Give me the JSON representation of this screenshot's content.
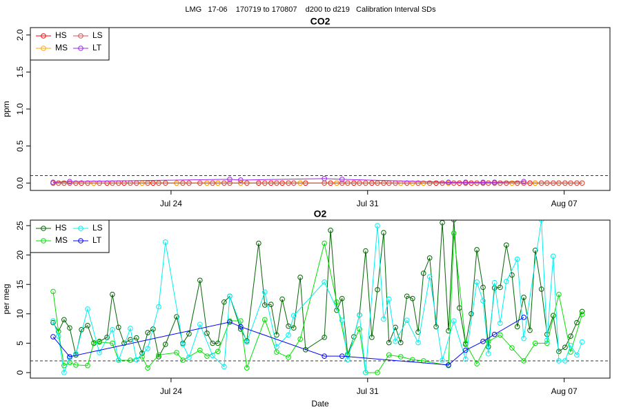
{
  "title": "LMG   17-06    170719 to 170807    d200 to d219   Calibration Interval SDs",
  "chart_data": [
    {
      "type": "line",
      "title": "CO2",
      "ylabel": "ppm",
      "legend": "topleft",
      "grid": false,
      "hline": 0.1,
      "xlim": [
        199.99,
        220.63
      ],
      "ylim": [
        -0.1,
        2.1
      ],
      "xticks": [
        {
          "value": 205,
          "label": "Jul 24"
        },
        {
          "value": 212,
          "label": "Jul 31"
        },
        {
          "value": 219,
          "label": "Aug 07"
        }
      ],
      "yticks": [
        {
          "value": 0,
          "label": "0.0"
        },
        0.5,
        {
          "value": 1,
          "label": "1.0"
        },
        1.5,
        {
          "value": 2,
          "label": "2.0"
        }
      ],
      "series": [
        {
          "name": "HS",
          "color": "#ff0000",
          "x": [
            200.8,
            200.99,
            201.19,
            201.39,
            201.61,
            201.81,
            202.03,
            202.25,
            202.45,
            202.72,
            202.91,
            203.13,
            203.33,
            203.55,
            203.77,
            203.97,
            204.17,
            204.36,
            204.56,
            204.8,
            205.2,
            205.42,
            205.64,
            206.03,
            206.28,
            206.48,
            206.67,
            206.89,
            207.09,
            207.48,
            207.7,
            208.12,
            208.34,
            208.56,
            208.76,
            208.96,
            209.18,
            209.37,
            209.6,
            209.79,
            210.46,
            210.68,
            210.9,
            211.09,
            211.29,
            211.51,
            211.71,
            211.93,
            212.15,
            212.35,
            212.57,
            212.76,
            212.99,
            213.18,
            213.4,
            213.6,
            213.8,
            213.99,
            214.21,
            214.44,
            214.66,
            214.88,
            215.07,
            215.27,
            215.49,
            215.69,
            215.89,
            216.11,
            216.3,
            216.52,
            216.72,
            216.94,
            217.14,
            217.33,
            217.56,
            217.78,
            217.97,
            218.19,
            218.39,
            218.61,
            218.81,
            219.03,
            219.23,
            219.45,
            219.64
          ],
          "values": [
            0,
            0,
            0,
            0,
            0,
            0,
            0,
            0,
            0,
            0,
            0,
            0,
            0,
            0,
            0,
            0,
            0,
            0,
            0,
            0,
            0,
            0,
            0,
            0,
            0,
            0,
            0,
            0,
            0,
            0,
            0,
            0,
            0,
            0,
            0,
            0,
            0,
            0,
            0,
            0,
            0,
            0,
            0,
            0,
            0,
            0,
            0,
            0,
            0,
            0,
            0,
            0,
            0,
            0,
            0,
            0,
            0,
            0,
            0,
            0,
            0,
            0,
            0,
            0,
            0,
            0,
            0,
            0,
            0,
            0,
            0,
            0,
            0,
            0,
            0,
            0,
            0,
            0,
            0,
            0,
            0,
            0,
            0,
            0,
            0
          ]
        },
        {
          "name": "MS",
          "color": "#ffa500",
          "x": [
            200.8,
            200.99,
            201.19,
            201.39,
            201.61,
            202.03,
            202.25,
            202.45,
            202.91,
            203.13,
            203.55,
            203.97,
            204.17,
            204.56,
            205.2,
            205.42,
            206.03,
            206.28,
            206.67,
            207.09,
            207.48,
            207.7,
            208.34,
            208.76,
            209.18,
            209.6,
            210.46,
            210.9,
            211.29,
            211.71,
            211.93,
            212.35,
            212.76,
            213.18,
            213.6,
            213.99,
            214.88,
            215.07,
            215.49,
            215.89,
            216.3,
            216.72,
            217.14,
            217.56,
            217.97,
            218.39,
            218.81,
            219.23,
            219.64
          ],
          "values": [
            0,
            0,
            0,
            0,
            0,
            0,
            0,
            0,
            0,
            0,
            0,
            0,
            0,
            0,
            0,
            0,
            0,
            0,
            0,
            0,
            0,
            0,
            0,
            0,
            0,
            0,
            0,
            0,
            0,
            0,
            0,
            0,
            0,
            0,
            0,
            0,
            0,
            0,
            0,
            0,
            0,
            0,
            0,
            0,
            0,
            0,
            0,
            0,
            0
          ]
        },
        {
          "name": "LS",
          "color": "#d05050",
          "x": [
            200.8,
            200.99,
            201.19,
            201.39,
            201.61,
            202.03,
            202.45,
            202.91,
            203.13,
            203.55,
            203.77,
            204.17,
            204.56,
            204.8,
            205.42,
            205.64,
            206.03,
            206.48,
            206.89,
            207.09,
            207.7,
            208.34,
            208.76,
            209.18,
            209.37,
            210.46,
            211.09,
            211.29,
            211.71,
            211.93,
            212.35,
            212.57,
            212.76,
            212.99,
            213.4,
            213.8,
            214.21,
            214.66,
            215.07,
            215.49,
            215.89,
            216.11,
            216.3,
            216.52,
            216.72,
            216.94,
            217.33,
            217.56,
            218.19,
            218.39,
            218.61,
            218.81,
            219.03,
            219.23,
            219.45,
            219.64
          ],
          "values": [
            0,
            0,
            0,
            0,
            0,
            0,
            0,
            0,
            0,
            0,
            0,
            0,
            0,
            0,
            0,
            0,
            0,
            0,
            0,
            0,
            0,
            0,
            0,
            0,
            0,
            0,
            0,
            0,
            0,
            0,
            0,
            0,
            0,
            0,
            0,
            0,
            0,
            0,
            0,
            0,
            0,
            0,
            0,
            0,
            0,
            0,
            0,
            0,
            0,
            0,
            0,
            0,
            0,
            0,
            0,
            0
          ]
        },
        {
          "name": "LT",
          "color": "#a020f0",
          "x": [
            200.8,
            201.39,
            207.09,
            207.48,
            210.46,
            211.09,
            214.88,
            215.49,
            216.11,
            216.52,
            217.56
          ],
          "values": [
            0.01,
            0.02,
            0.05,
            0.04,
            0.06,
            0.05,
            0.01,
            0.01,
            0.01,
            0.01,
            0.02
          ]
        }
      ]
    },
    {
      "type": "line",
      "title": "O2",
      "ylabel": "per meg",
      "xlabel": "Date",
      "legend": "topleft",
      "grid": false,
      "hline": 2,
      "xlim": [
        199.99,
        220.63
      ],
      "ylim": [
        -0.94,
        25.94
      ],
      "xticks": [
        {
          "value": 205,
          "label": "Jul 24"
        },
        {
          "value": 212,
          "label": "Jul 31"
        },
        {
          "value": 219,
          "label": "Aug 07"
        }
      ],
      "yticks": [
        0,
        5,
        10,
        15,
        20,
        25
      ],
      "series": [
        {
          "name": "HS",
          "color": "#006400",
          "x": [
            200.8,
            200.99,
            201.19,
            201.39,
            201.61,
            201.81,
            202.03,
            202.25,
            202.45,
            202.72,
            202.91,
            203.13,
            203.33,
            203.55,
            203.77,
            203.97,
            204.17,
            204.36,
            204.56,
            204.8,
            205.2,
            205.42,
            205.64,
            206.03,
            206.28,
            206.48,
            206.67,
            206.89,
            207.09,
            207.48,
            207.7,
            208.12,
            208.34,
            208.56,
            208.76,
            208.96,
            209.18,
            209.37,
            209.6,
            209.79,
            210.46,
            210.68,
            210.9,
            211.09,
            211.29,
            211.51,
            211.71,
            211.93,
            212.15,
            212.35,
            212.57,
            212.76,
            212.99,
            213.18,
            213.4,
            213.6,
            213.8,
            213.99,
            214.21,
            214.44,
            214.66,
            214.88,
            215.07,
            215.27,
            215.49,
            215.69,
            215.89,
            216.11,
            216.3,
            216.52,
            216.72,
            216.94,
            217.14,
            217.33,
            217.56,
            217.78,
            217.97,
            218.19,
            218.39,
            218.61,
            218.81,
            219.03,
            219.23,
            219.45,
            219.64
          ],
          "values": [
            8.5,
            7,
            9,
            7.6,
            3,
            7.3,
            8,
            5,
            5.3,
            6,
            13.3,
            7.7,
            5,
            5.6,
            5.9,
            3.3,
            6.8,
            7.4,
            2.7,
            4.8,
            9.5,
            5,
            6.6,
            15.7,
            6.7,
            5,
            5,
            12,
            13,
            7.4,
            5.4,
            22,
            11.5,
            11.6,
            6.4,
            12.5,
            7.9,
            7.6,
            16.2,
            3.9,
            6,
            24.2,
            10.6,
            12.6,
            3.1,
            6.1,
            9.8,
            20.7,
            6,
            14.1,
            23.8,
            5.1,
            7.7,
            5.1,
            13,
            12.6,
            6.9,
            16.9,
            19.5,
            7.8,
            25.5,
            7.1,
            26,
            11,
            4.8,
            10,
            20.9,
            14.5,
            4.4,
            14.4,
            14.5,
            21.7,
            16.6,
            7.8,
            12.8,
            7.2,
            20.8,
            14.2,
            6.5,
            9.7,
            3.6,
            4.3,
            6.2,
            8.5,
            10.4
          ]
        },
        {
          "name": "MS",
          "color": "#00e000",
          "x": [
            200.8,
            200.99,
            201.19,
            201.39,
            201.61,
            202.03,
            202.25,
            202.45,
            202.91,
            203.13,
            203.55,
            203.97,
            204.17,
            204.56,
            205.2,
            205.42,
            206.03,
            206.28,
            206.67,
            207.09,
            207.48,
            207.7,
            208.34,
            208.76,
            209.18,
            209.6,
            210.46,
            210.9,
            211.29,
            211.71,
            211.93,
            212.35,
            212.76,
            213.18,
            213.6,
            213.99,
            214.88,
            215.07,
            215.49,
            215.89,
            216.3,
            216.72,
            217.14,
            217.56,
            217.97,
            218.39,
            218.81,
            219.23,
            219.64
          ],
          "values": [
            13.8,
            7,
            1.2,
            1.7,
            1.3,
            1.2,
            5.1,
            5.2,
            5,
            2.1,
            2.1,
            2.7,
            0.8,
            3,
            3.4,
            2.1,
            3.8,
            2.8,
            3.6,
            8.8,
            8.8,
            0.8,
            9,
            3.5,
            2.6,
            5.7,
            22,
            12,
            3,
            7.4,
            0,
            0,
            3,
            2.7,
            2.2,
            2,
            1.2,
            23.7,
            5,
            1.5,
            5.3,
            6.4,
            4.2,
            2,
            5,
            5,
            13.3,
            3.5,
            9.9
          ]
        },
        {
          "name": "LS",
          "color": "#00f0f0",
          "x": [
            200.8,
            200.99,
            201.19,
            201.39,
            201.61,
            202.03,
            202.45,
            202.91,
            203.13,
            203.55,
            203.77,
            204.17,
            204.56,
            204.8,
            205.42,
            205.64,
            206.03,
            206.48,
            206.89,
            207.09,
            207.7,
            208.34,
            208.76,
            209.18,
            209.37,
            210.46,
            211.09,
            211.29,
            211.71,
            211.93,
            212.35,
            212.57,
            212.76,
            212.99,
            213.4,
            213.8,
            214.21,
            214.66,
            215.07,
            215.49,
            215.89,
            216.11,
            216.3,
            216.52,
            216.72,
            216.94,
            217.33,
            217.56,
            218.19,
            218.39,
            218.61,
            218.81,
            219.03,
            219.23,
            219.45,
            219.64
          ],
          "values": [
            8.8,
            6.2,
            0,
            2.5,
            3.2,
            10.8,
            3.4,
            7.3,
            2.1,
            7.5,
            2.2,
            4.1,
            11.2,
            22.2,
            4.8,
            2.6,
            8.2,
            2.9,
            1,
            13,
            5.2,
            13.7,
            4.4,
            6.4,
            9.7,
            15.4,
            8.9,
            2.2,
            9.8,
            0,
            25,
            9.1,
            12.5,
            5.3,
            8.9,
            5.1,
            16.3,
            2.1,
            8.8,
            2.3,
            15.4,
            12.2,
            3.2,
            15.3,
            8.4,
            15.5,
            19.3,
            5.8,
            26,
            5.5,
            19.8,
            2,
            2,
            4.6,
            3,
            5.2
          ]
        },
        {
          "name": "LT",
          "color": "#0000ff",
          "x": [
            200.8,
            201.39,
            207.09,
            207.48,
            210.46,
            211.09,
            214.88,
            215.49,
            216.11,
            216.52,
            217.56
          ],
          "values": [
            6.1,
            2.7,
            8.6,
            7.8,
            2.8,
            2.8,
            1.3,
            3.8,
            5.3,
            6.5,
            9.4
          ]
        }
      ]
    }
  ]
}
